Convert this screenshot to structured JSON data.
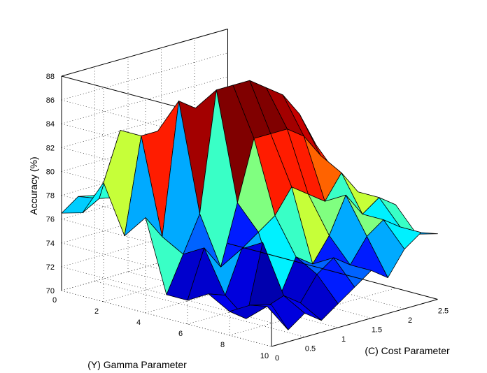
{
  "chart_data": {
    "type": "surface3d",
    "title": "",
    "zlabel": "Accuracy (%)",
    "ylabel": "(Y) Gamma Parameter",
    "xlabel": "(C) Cost Parameter",
    "zlim": [
      70,
      88
    ],
    "zticks": [
      "70",
      "72",
      "74",
      "76",
      "78",
      "80",
      "82",
      "84",
      "86",
      "88"
    ],
    "gamma_ticks": [
      "0",
      "2",
      "4",
      "6",
      "8",
      "10"
    ],
    "cost_ticks": [
      "0",
      "0.5",
      "1",
      "1.5",
      "2",
      "2.5"
    ],
    "gamma": [
      0,
      1,
      2,
      3,
      4,
      5,
      6,
      7,
      8,
      9,
      10
    ],
    "cost": [
      0,
      0.25,
      0.5,
      0.75,
      1.0,
      1.25,
      1.5,
      1.75,
      2.0,
      2.25,
      2.5
    ],
    "accuracy": [
      [
        76.5,
        77.5,
        77.2,
        77.0,
        77.3,
        77.5,
        77.0,
        76.8,
        77.0,
        77.2,
        77.5
      ],
      [
        77.0,
        77.8,
        77.5,
        77.0,
        77.5,
        78.0,
        77.6,
        77.3,
        77.6,
        77.9,
        78.0
      ],
      [
        80.0,
        84.0,
        78.0,
        79.0,
        79.5,
        80.0,
        79.5,
        79.2,
        79.7,
        80.0,
        79.0
      ],
      [
        76.0,
        84.0,
        84.0,
        78.0,
        80.5,
        81.0,
        80.0,
        80.3,
        80.7,
        81.0,
        80.0
      ],
      [
        78.0,
        76.0,
        87.0,
        86.0,
        85.0,
        84.0,
        82.0,
        81.2,
        81.5,
        80.0,
        78.0
      ],
      [
        72.0,
        75.0,
        78.0,
        88.0,
        88.0,
        88.0,
        87.0,
        86.0,
        84.0,
        81.0,
        76.0
      ],
      [
        72.0,
        76.0,
        74.0,
        79.0,
        84.0,
        84.0,
        84.0,
        83.0,
        81.0,
        79.0,
        76.0
      ],
      [
        73.0,
        72.5,
        76.0,
        77.0,
        78.0,
        80.0,
        79.0,
        78.0,
        80.0,
        78.0,
        76.0
      ],
      [
        72.0,
        71.0,
        77.0,
        72.0,
        75.0,
        74.0,
        76.0,
        79.0,
        77.0,
        78.0,
        77.0
      ],
      [
        73.0,
        72.5,
        73.0,
        72.0,
        74.0,
        75.0,
        74.0,
        76.0,
        77.0,
        76.0,
        75.0
      ],
      [
        73.5,
        71.0,
        72.0,
        71.0,
        72.0,
        73.0,
        74.0,
        73.0,
        75.0,
        76.0,
        75.5
      ]
    ],
    "grid": true,
    "colormap": "jet",
    "colormap_stops": [
      "#00008f",
      "#0000ff",
      "#00ffff",
      "#ffff00",
      "#ff0000",
      "#800000"
    ],
    "accent_colors": {
      "navy": "#0a0a8c",
      "blue": "#1e5cff",
      "cyan": "#22ffe0",
      "yellow": "#ffff00",
      "orange": "#ff4800",
      "maroon": "#800000"
    }
  }
}
